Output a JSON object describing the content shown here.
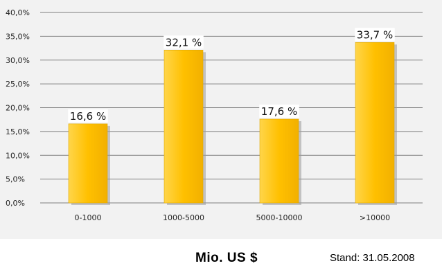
{
  "chart_data": {
    "type": "bar",
    "categories": [
      "0-1000",
      "1000-5000",
      "5000-10000",
      ">10000"
    ],
    "values": [
      16.6,
      32.1,
      17.6,
      33.7
    ],
    "data_labels": [
      "16,6 %",
      "32,1 %",
      "17,6 %",
      "33,7 %"
    ],
    "y_ticks": [
      0,
      5,
      10,
      15,
      20,
      25,
      30,
      35,
      40
    ],
    "y_tick_labels": [
      "0,0%",
      "5,0%",
      "10,0%",
      "15,0%",
      "20,0%",
      "25,0%",
      "30,0%",
      "35,0%",
      "40,0%"
    ],
    "ylim": [
      0,
      40
    ],
    "xlabel": "Mio. US $",
    "ylabel": "",
    "title": "",
    "grid": true,
    "legend": "none",
    "bar_color": "#ffc000",
    "gridline_color": "#7f7f7f"
  },
  "note": "Stand: 31.05.2008"
}
